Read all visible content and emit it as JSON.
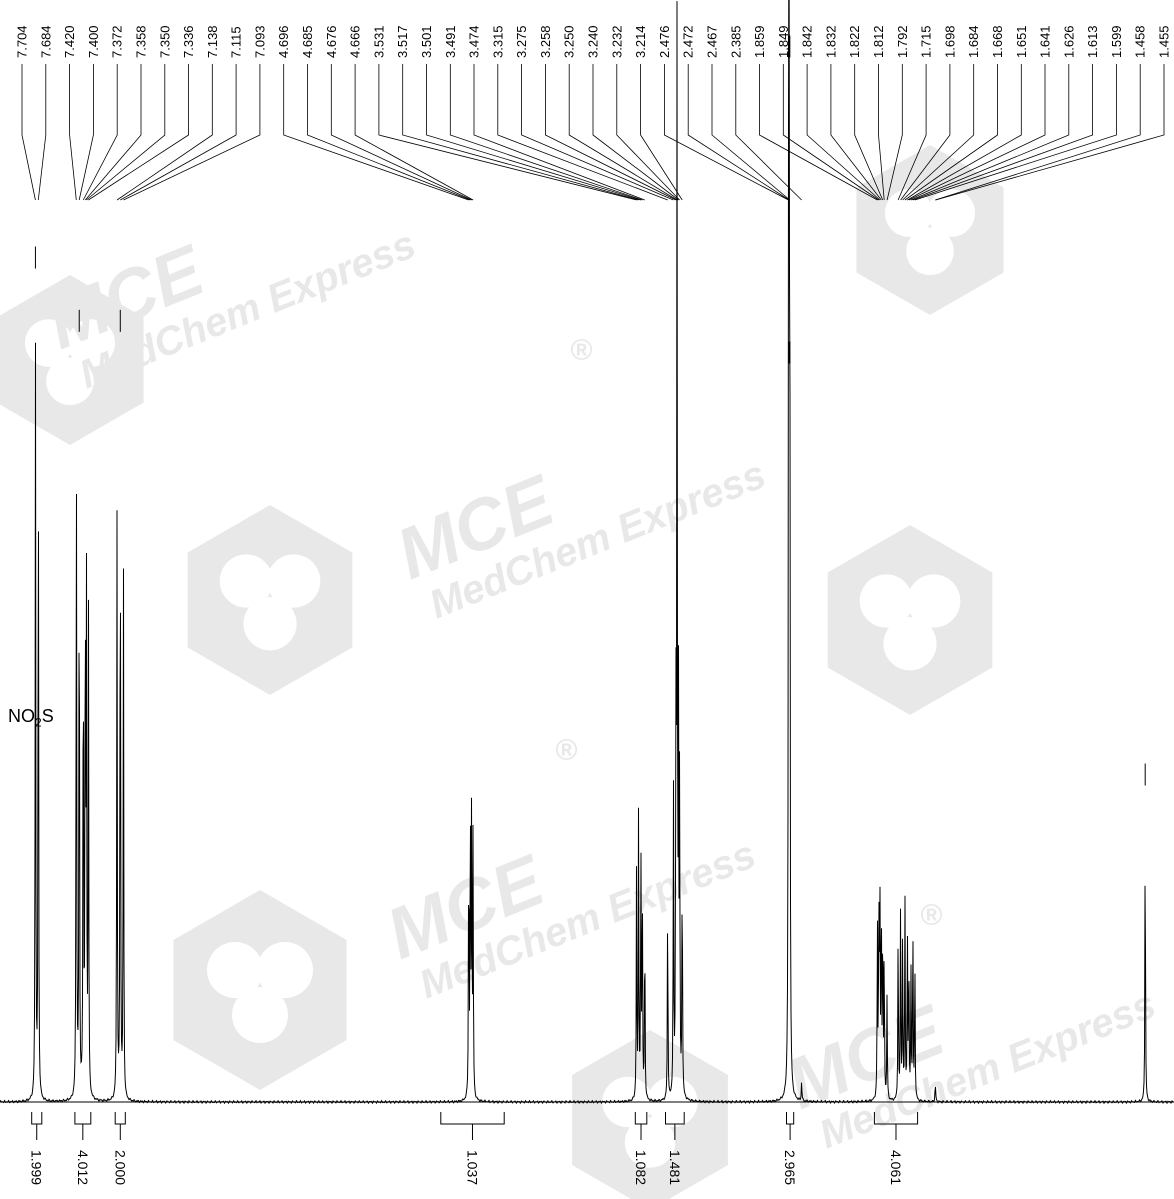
{
  "formula": {
    "prefix": "NO",
    "sub": "2",
    "suffix": "S"
  },
  "watermark": {
    "logo": "MCE",
    "company": "MedChem Express",
    "mark": "®",
    "color": "#e8e8e8"
  },
  "chart_data": {
    "type": "line",
    "title": "",
    "xlabel": "",
    "ylabel": "",
    "x_direction": "descending (ppm)",
    "xlim": [
      7.95,
      -0.2
    ],
    "peak_labels": [
      "7.704",
      "7.684",
      "7.420",
      "7.400",
      "7.372",
      "7.358",
      "7.350",
      "7.336",
      "7.138",
      "7.115",
      "7.093",
      "4.696",
      "4.685",
      "4.676",
      "4.666",
      "3.531",
      "3.517",
      "3.501",
      "3.491",
      "3.474",
      "3.315",
      "3.275",
      "3.258",
      "3.250",
      "3.240",
      "3.232",
      "3.214",
      "2.476",
      "2.472",
      "2.467",
      "2.385",
      "1.859",
      "1.849",
      "1.842",
      "1.832",
      "1.822",
      "1.812",
      "1.792",
      "1.715",
      "1.698",
      "1.684",
      "1.668",
      "1.651",
      "1.641",
      "1.626",
      "1.613",
      "1.599",
      "1.458",
      "1.455"
    ],
    "integrals": [
      {
        "value": "1.999",
        "from": 7.73,
        "to": 7.66
      },
      {
        "value": "4.012",
        "from": 7.43,
        "to": 7.32
      },
      {
        "value": "2.000",
        "from": 7.15,
        "to": 7.08
      },
      {
        "value": "1.037",
        "from": 4.89,
        "to": 4.45
      },
      {
        "value": "1.082",
        "from": 3.54,
        "to": 3.46
      },
      {
        "value": "1.481",
        "from": 3.33,
        "to": 3.2
      },
      {
        "value": "2.965",
        "from": 2.49,
        "to": 2.44
      },
      {
        "value": "4.061",
        "from": 1.88,
        "to": 1.58
      }
    ],
    "peaks": [
      {
        "ppm": 7.704,
        "height": 0.74
      },
      {
        "ppm": 7.684,
        "height": 0.71
      },
      {
        "ppm": 7.42,
        "height": 0.7
      },
      {
        "ppm": 7.4,
        "height": 0.62
      },
      {
        "ppm": 7.372,
        "height": 0.52
      },
      {
        "ppm": 7.358,
        "height": 0.55
      },
      {
        "ppm": 7.35,
        "height": 0.49
      },
      {
        "ppm": 7.336,
        "height": 0.47
      },
      {
        "ppm": 7.138,
        "height": 0.56
      },
      {
        "ppm": 7.115,
        "height": 0.67
      },
      {
        "ppm": 7.093,
        "height": 0.51
      },
      {
        "ppm": 4.696,
        "height": 0.27
      },
      {
        "ppm": 4.685,
        "height": 0.3
      },
      {
        "ppm": 4.676,
        "height": 0.29
      },
      {
        "ppm": 4.666,
        "height": 0.25
      },
      {
        "ppm": 3.531,
        "height": 0.22
      },
      {
        "ppm": 3.517,
        "height": 0.28
      },
      {
        "ppm": 3.501,
        "height": 0.25
      },
      {
        "ppm": 3.491,
        "height": 0.22
      },
      {
        "ppm": 3.474,
        "height": 0.18
      },
      {
        "ppm": 3.315,
        "height": 0.2
      },
      {
        "ppm": 3.275,
        "height": 0.3
      },
      {
        "ppm": 3.258,
        "height": 0.38
      },
      {
        "ppm": 3.25,
        "height": 1.0
      },
      {
        "ppm": 3.24,
        "height": 0.36
      },
      {
        "ppm": 3.232,
        "height": 0.32
      },
      {
        "ppm": 3.214,
        "height": 0.24
      },
      {
        "ppm": 2.476,
        "height": 0.68
      },
      {
        "ppm": 2.472,
        "height": 0.97
      },
      {
        "ppm": 2.467,
        "height": 0.7
      },
      {
        "ppm": 2.385,
        "height": 0.02
      },
      {
        "ppm": 1.859,
        "height": 0.17
      },
      {
        "ppm": 1.849,
        "height": 0.19
      },
      {
        "ppm": 1.842,
        "height": 0.21
      },
      {
        "ppm": 1.832,
        "height": 0.2
      },
      {
        "ppm": 1.822,
        "height": 0.18
      },
      {
        "ppm": 1.812,
        "height": 0.15
      },
      {
        "ppm": 1.792,
        "height": 0.1
      },
      {
        "ppm": 1.715,
        "height": 0.17
      },
      {
        "ppm": 1.698,
        "height": 0.19
      },
      {
        "ppm": 1.684,
        "height": 0.16
      },
      {
        "ppm": 1.668,
        "height": 0.2
      },
      {
        "ppm": 1.651,
        "height": 0.17
      },
      {
        "ppm": 1.641,
        "height": 0.14
      },
      {
        "ppm": 1.626,
        "height": 0.12
      },
      {
        "ppm": 1.613,
        "height": 0.18
      },
      {
        "ppm": 1.599,
        "height": 0.14
      },
      {
        "ppm": 1.458,
        "height": 0.01
      },
      {
        "ppm": 1.455,
        "height": 0.01
      },
      {
        "ppm": 0.0,
        "height": 0.28
      }
    ]
  }
}
